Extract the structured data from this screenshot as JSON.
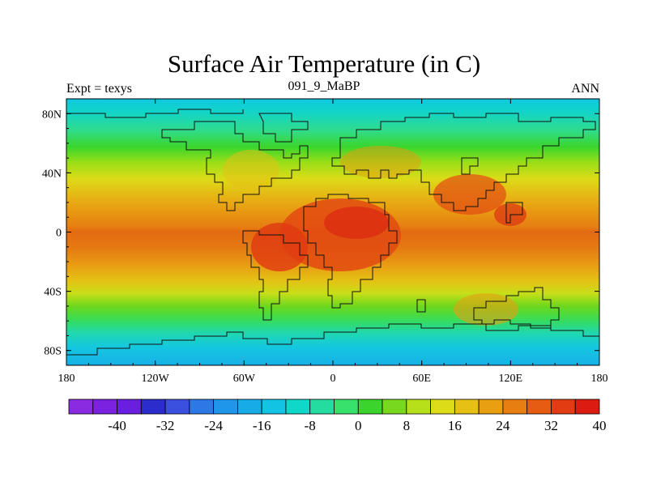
{
  "header": {
    "title": "Surface Air Temperature (in C)",
    "left_string": "Expt = texys",
    "center_string": "091_9_MaBP",
    "right_string": "ANN"
  },
  "map": {
    "projection": "cylindrical-equidistant",
    "lon_range": [
      -180,
      180
    ],
    "lat_range": [
      -90,
      90
    ],
    "x_tick_labels": [
      "180",
      "120W",
      "60W",
      "0",
      "60E",
      "120E",
      "180"
    ],
    "y_tick_labels": [
      "80N",
      "40N",
      "0",
      "40S",
      "80S"
    ],
    "field": "surface air temperature",
    "field_summary": {
      "equatorial_max_c": 44,
      "polar_min_c": 0,
      "hot_continents": [
        "Africa",
        "South America",
        "South Asia"
      ]
    }
  },
  "colorbar": {
    "tick_labels": [
      "-40",
      "-32",
      "-24",
      "-16",
      "-8",
      "0",
      "8",
      "16",
      "24",
      "32",
      "40"
    ],
    "colors": [
      "#8a2be2",
      "#7a22e0",
      "#6a1ee0",
      "#2c2ccc",
      "#3c50e0",
      "#2e78e6",
      "#1f96ea",
      "#17abe8",
      "#12c3e3",
      "#10d8c8",
      "#25dca0",
      "#38e06c",
      "#3ad42c",
      "#78d81e",
      "#b6e01a",
      "#dcdc18",
      "#e6c014",
      "#e8a012",
      "#e67e12",
      "#e65c12",
      "#e23c12",
      "#dc1c12"
    ]
  }
}
